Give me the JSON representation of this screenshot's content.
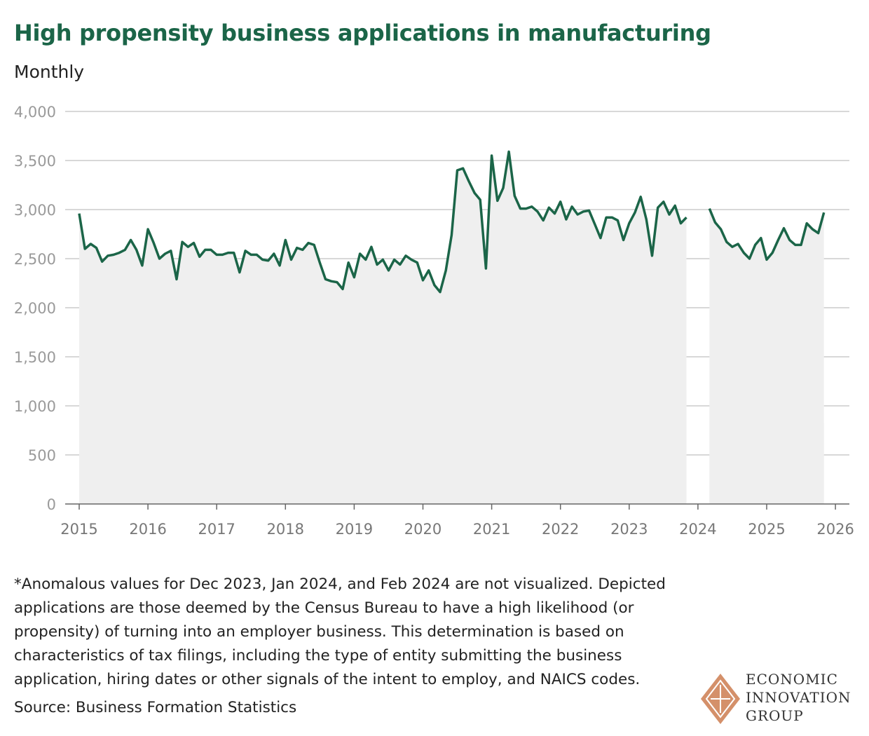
{
  "header": {
    "title": "High propensity business applications in manufacturing",
    "subtitle": "Monthly"
  },
  "footnote": "*Anomalous values for Dec 2023, Jan 2024, and Feb 2024 are not visualized. Depicted applications are those deemed by the Census Bureau to have a high likelihood (or propensity) of turning into an employer business. This determination is based on characteristics of tax filings, including the type of entity submitting the business application, hiring dates or other signals of the intent to employ, and NAICS codes.",
  "source": "Source: Business Formation Statistics",
  "logo": {
    "line1": "ECONOMIC",
    "line2": "INNOVATION",
    "line3": "GROUP"
  },
  "colors": {
    "line": "#1b6548",
    "fill": "#efefef",
    "grid": "#cccccc",
    "title": "#1b6548",
    "logo": "#d4906a"
  },
  "chart_data": {
    "type": "area",
    "title": "High propensity business applications in manufacturing",
    "subtitle": "Monthly",
    "xlabel": "",
    "ylabel": "",
    "ylim": [
      0,
      4000
    ],
    "xlim": [
      2015,
      2026
    ],
    "yticks": [
      0,
      500,
      1000,
      1500,
      2000,
      2500,
      3000,
      3500,
      4000
    ],
    "ytick_labels": [
      "0",
      "500",
      "1,000",
      "1,500",
      "2,000",
      "2,500",
      "3,000",
      "3,500",
      "4,000"
    ],
    "xticks": [
      "2015",
      "2016",
      "2017",
      "2018",
      "2019",
      "2020",
      "2021",
      "2022",
      "2023",
      "2024",
      "2025",
      "2026"
    ],
    "grid": true,
    "series": [
      {
        "name": "Jan 2015 - Nov 2023",
        "start": "2015-01",
        "values": [
          2960,
          2600,
          2650,
          2610,
          2470,
          2530,
          2540,
          2560,
          2590,
          2690,
          2590,
          2430,
          2800,
          2660,
          2500,
          2550,
          2580,
          2290,
          2670,
          2620,
          2660,
          2520,
          2590,
          2590,
          2540,
          2540,
          2560,
          2560,
          2360,
          2580,
          2540,
          2540,
          2490,
          2480,
          2550,
          2430,
          2690,
          2490,
          2610,
          2590,
          2660,
          2640,
          2460,
          2290,
          2270,
          2260,
          2190,
          2460,
          2310,
          2550,
          2490,
          2620,
          2440,
          2490,
          2380,
          2490,
          2440,
          2530,
          2490,
          2460,
          2280,
          2380,
          2230,
          2160,
          2380,
          2740,
          3400,
          3420,
          3290,
          3170,
          3100,
          2400,
          3550,
          3090,
          3220,
          3590,
          3140,
          3010,
          3010,
          3030,
          2980,
          2890,
          3020,
          2960,
          3080,
          2900,
          3030,
          2950,
          2980,
          2990,
          2850,
          2710,
          2920,
          2920,
          2890,
          2690,
          2860,
          2970,
          3130,
          2900,
          2530,
          3020,
          3080,
          2950,
          3040,
          2860,
          2920
        ]
      },
      {
        "name": "Mar 2024 - Nov 2025",
        "start": "2024-03",
        "values": [
          3010,
          2870,
          2800,
          2670,
          2620,
          2650,
          2560,
          2500,
          2640,
          2710,
          2490,
          2560,
          2690,
          2810,
          2690,
          2640,
          2640,
          2860,
          2800,
          2760,
          2970
        ]
      }
    ]
  }
}
